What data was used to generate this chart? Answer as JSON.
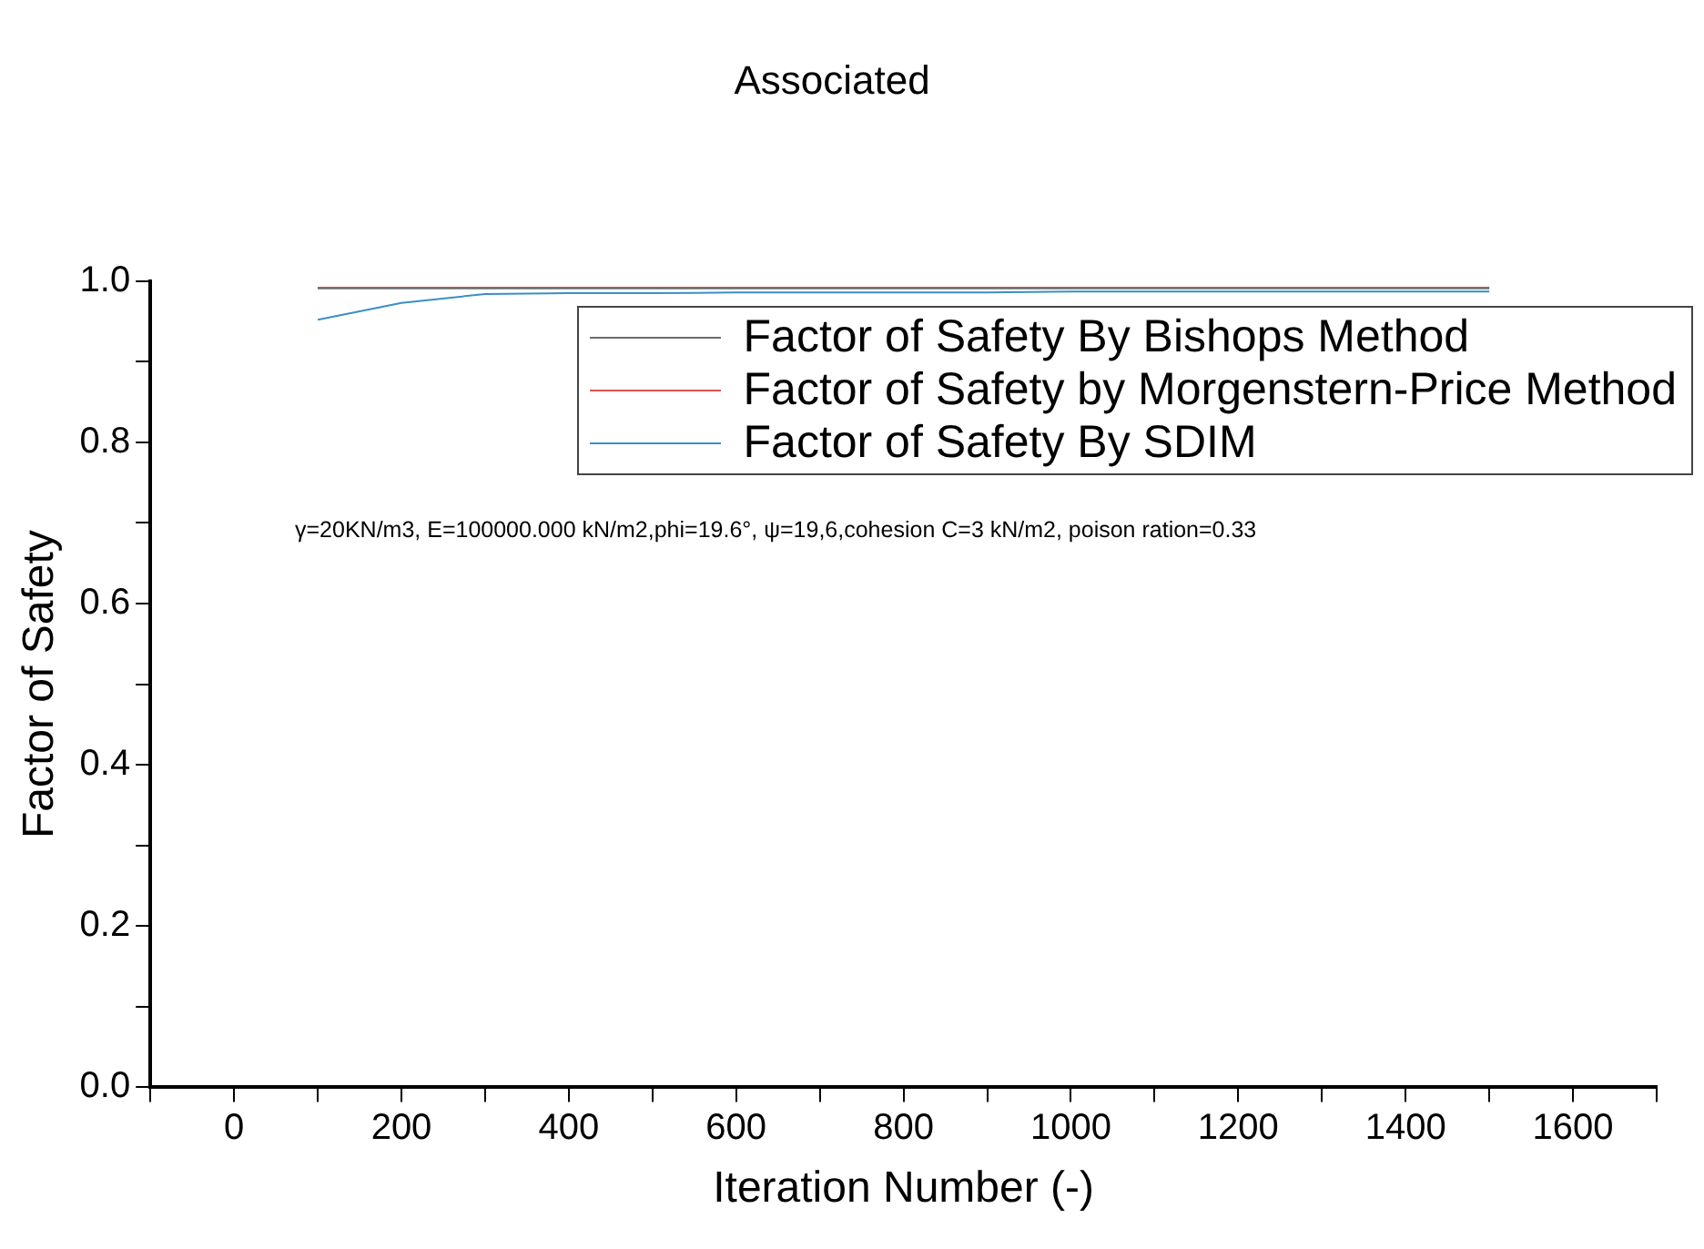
{
  "chart_data": {
    "type": "line",
    "title": "Associated",
    "xlabel": "Iteration Number (-)",
    "ylabel": "Factor of Safety",
    "x": [
      100,
      200,
      300,
      400,
      500,
      600,
      700,
      800,
      900,
      1000,
      1100,
      1200,
      1300,
      1400,
      1500
    ],
    "series": [
      {
        "name": "Factor of Safety By Bishops Method",
        "color": "#6b6b6b",
        "values": [
          0.991,
          0.991,
          0.991,
          0.991,
          0.991,
          0.991,
          0.991,
          0.991,
          0.991,
          0.991,
          0.991,
          0.991,
          0.991,
          0.991,
          0.991
        ]
      },
      {
        "name": "Factor of Safety by Morgenstern-Price Method",
        "color": "#d9534f",
        "values": [
          0.992,
          0.992,
          0.992,
          0.992,
          0.992,
          0.992,
          0.992,
          0.992,
          0.992,
          0.992,
          0.992,
          0.992,
          0.992,
          0.992,
          0.992
        ]
      },
      {
        "name": "Factor of Safety By SDIM",
        "color": "#3a8fc4",
        "values": [
          0.952,
          0.973,
          0.984,
          0.985,
          0.985,
          0.986,
          0.986,
          0.986,
          0.986,
          0.987,
          0.987,
          0.987,
          0.987,
          0.987,
          0.987
        ]
      }
    ],
    "xlim": [
      -100,
      1700
    ],
    "xticks": [
      {
        "value": -100,
        "label": null
      },
      0,
      {
        "value": 100,
        "label": null
      },
      200,
      {
        "value": 300,
        "label": null
      },
      400,
      {
        "value": 500,
        "label": null
      },
      600,
      {
        "value": 700,
        "label": null
      },
      800,
      {
        "value": 900,
        "label": null
      },
      1000,
      {
        "value": 1100,
        "label": null
      },
      1200,
      {
        "value": 1300,
        "label": null
      },
      1400,
      {
        "value": 1500,
        "label": null
      },
      1600,
      {
        "value": 1700,
        "label": null
      }
    ],
    "ylim": [
      0,
      1.0
    ],
    "yticks": [
      {
        "value": 0,
        "label": "0.0"
      },
      {
        "value": 0.1,
        "label": null
      },
      {
        "value": 0.2,
        "label": "0.2"
      },
      {
        "value": 0.3,
        "label": null
      },
      {
        "value": 0.4,
        "label": "0.4"
      },
      {
        "value": 0.5,
        "label": null
      },
      {
        "value": 0.6,
        "label": "0.6"
      },
      {
        "value": 0.7,
        "label": null
      },
      {
        "value": 0.8,
        "label": "0.8"
      },
      {
        "value": 0.9,
        "label": null
      },
      {
        "value": 1.0,
        "label": "1.0"
      }
    ],
    "grid": false,
    "legend": "top right",
    "marker": "none",
    "line_style": "solid",
    "annotations": [
      "γ=20KN/m3, E=100000.000 kN/m2,phi=19.6°, ψ=19,6,cohesion C=3 kN/m2, poison ration=0.33"
    ]
  }
}
